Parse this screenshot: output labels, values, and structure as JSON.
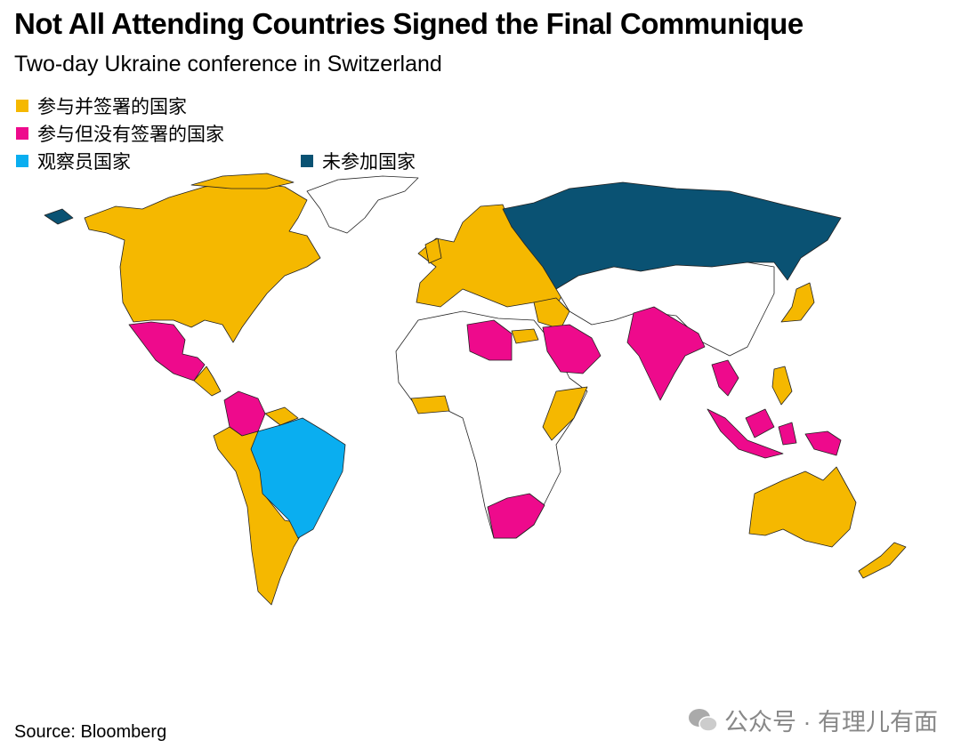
{
  "header": {
    "title": "Not All Attending Countries Signed the Final Communique",
    "subtitle": "Two-day Ukraine conference in Switzerland"
  },
  "legend": [
    {
      "label": "参与并签署的国家",
      "color": "#f5b800"
    },
    {
      "label": "参与但没有签署的国家",
      "color": "#ee0a8c"
    },
    {
      "label": "观察员国家",
      "color": "#0aaef0"
    },
    {
      "label": "未参加国家",
      "color": "#0a5273"
    }
  ],
  "footer": {
    "source": "Source: Bloomberg",
    "watermark": "公众号 · 有理儿有面"
  }
}
